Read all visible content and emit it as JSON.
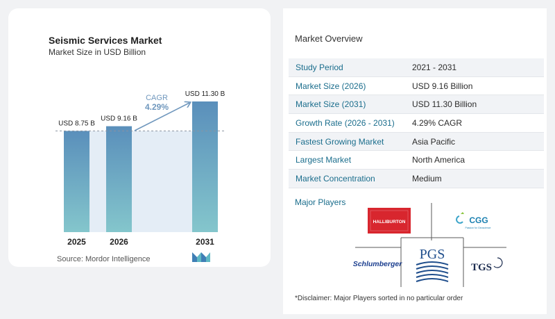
{
  "chart_data": {
    "type": "bar",
    "title": "Seismic Services Market",
    "subtitle": "Market Size in USD Billion",
    "categories": [
      "2025",
      "2026",
      "2031"
    ],
    "values": [
      8.75,
      9.16,
      11.3
    ],
    "data_labels": [
      "USD 8.75 B",
      "USD 9.16 B",
      "USD 11.30 B"
    ],
    "ylim": [
      0,
      11.3
    ],
    "grid": false,
    "annotation": {
      "label": "CAGR",
      "value": "4.29%"
    },
    "colors": {
      "bar_top": "#5a8fbb",
      "bar_bottom": "#84c6cc",
      "band": "#e4edf6",
      "arrow": "#6f97bd",
      "reference_line": "#8a93a0"
    }
  },
  "source": "Source:  Mordor Intelligence",
  "overview": {
    "title": "Market Overview",
    "rows": [
      {
        "label": "Study Period",
        "value": "2021 - 2031"
      },
      {
        "label": "Market Size (2026)",
        "value": "USD 9.16 Billion"
      },
      {
        "label": "Market Size (2031)",
        "value": "USD 11.30 Billion"
      },
      {
        "label": "Growth Rate (2026 - 2031)",
        "value": "4.29% CAGR"
      },
      {
        "label": "Fastest Growing Market",
        "value": "Asia Pacific"
      },
      {
        "label": "Largest Market",
        "value": "North America"
      },
      {
        "label": "Market Concentration",
        "value": "Medium"
      }
    ]
  },
  "players": {
    "title": "Major Players",
    "logos": {
      "halliburton": "HALLIBURTON",
      "cgg": "CGG",
      "cgg_tagline": "Passion for Geoscience",
      "pgs": "PGS",
      "schlumberger": "Schlumberger",
      "tgs": "TGS"
    }
  },
  "disclaimer": "*Disclaimer: Major Players sorted in no particular order"
}
